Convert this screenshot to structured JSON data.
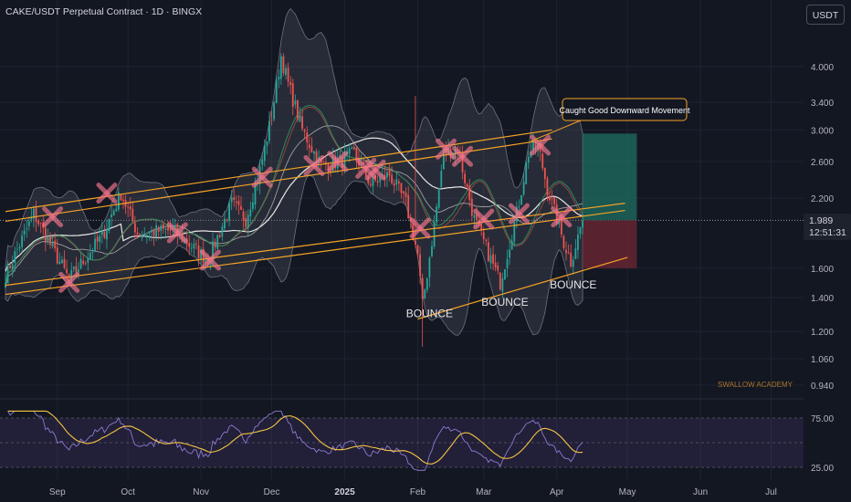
{
  "header": {
    "title": "CAKE/USDT Perpetual Contract · 1D · BINGX"
  },
  "currency_button": {
    "label": "USDT"
  },
  "last_price": {
    "value": "1.989",
    "countdown": "12:51:31"
  },
  "watermark": "SWALLOW ACADEMY",
  "colors": {
    "background": "#131722",
    "up": "#26a69a",
    "down": "#ef5350",
    "trendline": "#f7a325",
    "bollinger": "#6d7080",
    "ma_long": "#e8e8e8",
    "ma_short": "#2e8b57",
    "marker": "#f7768e",
    "rsi_line": "#f5c542",
    "rsi_osc": "#7e57c2"
  },
  "chart_data": {
    "type": "candlestick",
    "symbol": "CAKE/USDT Perpetual Contract",
    "interval": "1D",
    "exchange": "BINGX",
    "y_axis": {
      "scale": "log",
      "ticks": [
        4.0,
        3.4,
        3.0,
        2.6,
        2.2,
        1.989,
        1.6,
        1.4,
        1.2,
        1.06,
        0.94
      ]
    },
    "x_axis": {
      "ticks": [
        "Sep",
        "Oct",
        "Nov",
        "Dec",
        "2025",
        "Feb",
        "Mar",
        "Apr",
        "May",
        "Jun",
        "Jul"
      ]
    },
    "price_path": [
      {
        "date": "2024-08-10",
        "close": 1.55
      },
      {
        "date": "2024-08-22",
        "close": 2.05
      },
      {
        "date": "2024-09-01",
        "close": 1.68
      },
      {
        "date": "2024-09-06",
        "close": 1.52
      },
      {
        "date": "2024-09-20",
        "close": 1.85
      },
      {
        "date": "2024-09-28",
        "close": 2.25
      },
      {
        "date": "2024-10-05",
        "close": 1.88
      },
      {
        "date": "2024-10-20",
        "close": 1.9
      },
      {
        "date": "2024-11-04",
        "close": 1.66
      },
      {
        "date": "2024-11-14",
        "close": 2.15
      },
      {
        "date": "2024-11-20",
        "close": 2.0
      },
      {
        "date": "2024-11-26",
        "close": 2.5
      },
      {
        "date": "2024-12-01",
        "close": 3.2
      },
      {
        "date": "2024-12-05",
        "close": 4.2
      },
      {
        "date": "2024-12-08",
        "close": 3.7
      },
      {
        "date": "2024-12-14",
        "close": 3.0
      },
      {
        "date": "2024-12-22",
        "close": 2.55
      },
      {
        "date": "2024-12-30",
        "close": 2.6
      },
      {
        "date": "2025-01-05",
        "close": 2.7
      },
      {
        "date": "2025-01-12",
        "close": 2.35
      },
      {
        "date": "2025-01-20",
        "close": 2.45
      },
      {
        "date": "2025-01-27",
        "close": 2.15
      },
      {
        "date": "2025-02-01",
        "close": 1.7
      },
      {
        "date": "2025-02-03",
        "close": 1.35
      },
      {
        "date": "2025-02-08",
        "close": 1.95
      },
      {
        "date": "2025-02-12",
        "close": 2.7
      },
      {
        "date": "2025-02-18",
        "close": 2.75
      },
      {
        "date": "2025-02-25",
        "close": 2.0
      },
      {
        "date": "2025-03-08",
        "close": 1.5
      },
      {
        "date": "2025-03-15",
        "close": 2.05
      },
      {
        "date": "2025-03-20",
        "close": 2.7
      },
      {
        "date": "2025-03-24",
        "close": 2.8
      },
      {
        "date": "2025-03-28",
        "close": 2.3
      },
      {
        "date": "2025-04-04",
        "close": 1.8
      },
      {
        "date": "2025-04-07",
        "close": 1.65
      },
      {
        "date": "2025-04-12",
        "close": 1.989
      }
    ],
    "annotations": [
      {
        "text": "Caught Good Downward Movement",
        "date": "2025-03-21",
        "price": 2.85
      },
      {
        "text": "BOUNCE",
        "date": "2025-02-06",
        "price": 1.28
      },
      {
        "text": "BOUNCE",
        "date": "2025-03-10",
        "price": 1.35
      },
      {
        "text": "BOUNCE",
        "date": "2025-04-08",
        "price": 1.46
      }
    ],
    "position_box": {
      "entry": 1.989,
      "target": 2.95,
      "stop": 1.6,
      "start": "2025-04-12",
      "end": "2025-05-05"
    },
    "rsi": {
      "levels": [
        75.0,
        25.0
      ]
    }
  }
}
